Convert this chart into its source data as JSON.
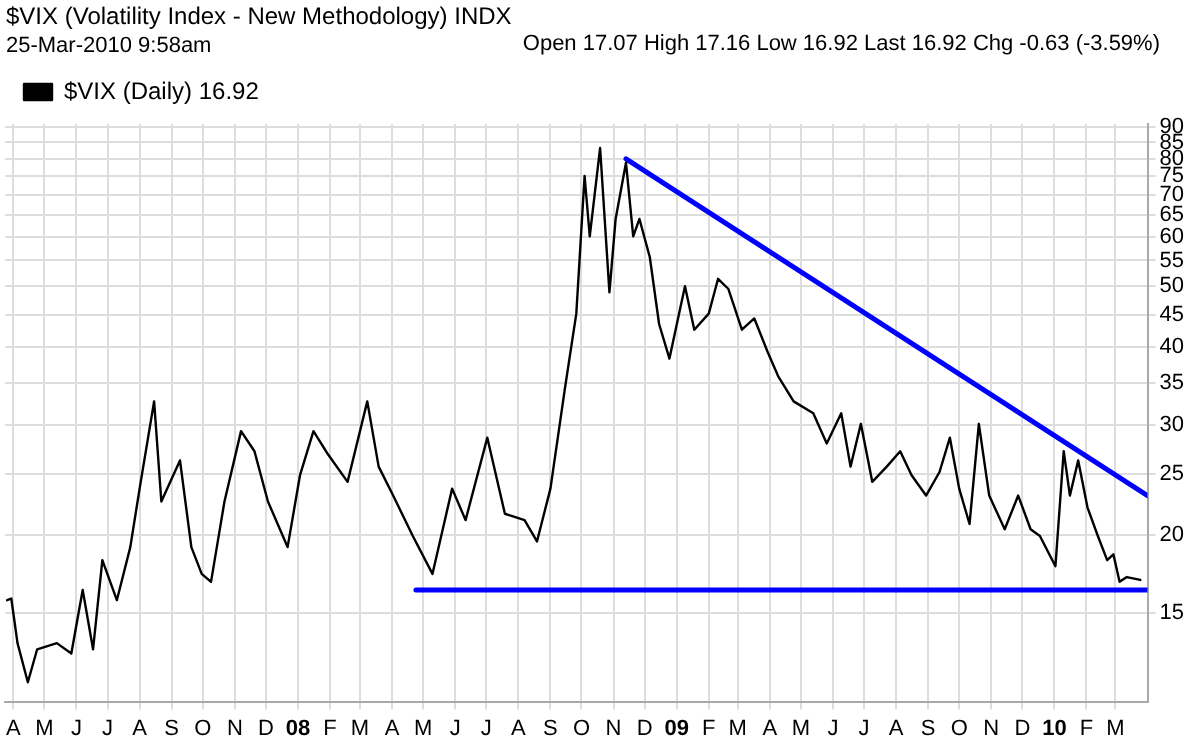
{
  "chart_data": {
    "type": "line",
    "title": "$VIX (Volatility Index - New Methodology) INDX",
    "annotations": [
      "25-Mar-2010 9:58am",
      "Open 17.07 High 17.16 Low 16.92 Last 16.92 Chg -0.63 (-3.59%)"
    ],
    "series": [
      {
        "name": "$VIX (Daily) 16.92",
        "color": "#000000",
        "x": [
          "2007-03-26",
          "2007-03-30",
          "2007-04-05",
          "2007-04-15",
          "2007-04-24",
          "2007-05-13",
          "2007-05-27",
          "2007-06-07",
          "2007-06-17",
          "2007-06-26",
          "2007-07-10",
          "2007-07-23",
          "2007-08-01",
          "2007-08-15",
          "2007-08-22",
          "2007-09-09",
          "2007-09-20",
          "2007-09-30",
          "2007-10-09",
          "2007-10-22",
          "2007-11-07",
          "2007-11-20",
          "2007-12-03",
          "2007-12-22",
          "2008-01-03",
          "2008-01-16",
          "2008-01-30",
          "2008-02-18",
          "2008-03-08",
          "2008-03-19",
          "2008-04-02",
          "2008-04-21",
          "2008-05-10",
          "2008-05-29",
          "2008-06-11",
          "2008-07-02",
          "2008-07-19",
          "2008-08-07",
          "2008-08-19",
          "2008-09-01",
          "2008-09-15",
          "2008-09-26",
          "2008-10-04",
          "2008-10-09",
          "2008-10-19",
          "2008-10-28",
          "2008-11-03",
          "2008-11-13",
          "2008-11-20",
          "2008-11-26",
          "2008-12-06",
          "2008-12-15",
          "2008-12-25",
          "2009-01-09",
          "2009-01-18",
          "2009-02-01",
          "2009-02-10",
          "2009-02-20",
          "2009-03-05",
          "2009-03-17",
          "2009-03-30",
          "2009-04-09",
          "2009-04-24",
          "2009-05-13",
          "2009-05-26",
          "2009-06-09",
          "2009-06-18",
          "2009-06-28",
          "2009-07-09",
          "2009-07-23",
          "2009-08-05",
          "2009-08-16",
          "2009-08-30",
          "2009-09-12",
          "2009-09-22",
          "2009-10-01",
          "2009-10-11",
          "2009-10-20",
          "2009-10-30",
          "2009-11-14",
          "2009-11-27",
          "2009-12-09",
          "2009-12-18",
          "2010-01-02",
          "2010-01-10",
          "2010-01-16",
          "2010-01-24",
          "2010-02-02",
          "2010-02-12",
          "2010-02-21",
          "2010-02-27",
          "2010-03-05",
          "2010-03-12",
          "2010-03-25"
        ],
        "values": [
          15.7,
          15.8,
          13.4,
          11.6,
          13.1,
          13.4,
          12.9,
          16.3,
          13.1,
          18.2,
          15.7,
          19.1,
          23.7,
          32.7,
          22.6,
          26.3,
          19.1,
          17.3,
          16.8,
          22.6,
          29.3,
          27.2,
          22.6,
          19.1,
          24.9,
          29.3,
          26.9,
          24.3,
          32.7,
          25.7,
          23.1,
          19.9,
          17.3,
          23.7,
          21.1,
          28.6,
          21.6,
          21.1,
          19.5,
          23.7,
          34.3,
          45.2,
          75.1,
          60.1,
          83.3,
          48.9,
          64.1,
          78.9,
          60.1,
          64.1,
          55.7,
          43.5,
          38.3,
          50,
          42.6,
          45.2,
          51.4,
          49.5,
          42.6,
          44.4,
          39.2,
          35.9,
          32.7,
          31.3,
          28,
          31.3,
          25.7,
          30.1,
          24.3,
          25.7,
          27.2,
          24.9,
          23.1,
          25.2,
          28.6,
          23.7,
          20.8,
          30.1,
          23.1,
          20.4,
          23.1,
          20.4,
          19.9,
          17.8,
          27.2,
          23.1,
          26.3,
          22.1,
          19.9,
          18.2,
          18.6,
          16.8,
          17.1,
          16.92
        ]
      },
      {
        "color": "#0000ff",
        "x": [
          "2008-11-13",
          "2010-04-01"
        ],
        "values": [
          80,
          23.1
        ]
      },
      {
        "color": "#0000ff",
        "x": [
          "2008-04-24",
          "2010-04-01"
        ],
        "values": [
          16.3,
          16.3
        ]
      }
    ],
    "log": true,
    "grid": true,
    "legend": "top left",
    "marker": "none",
    "line_style": "solid",
    "xlim": [
      "2007-03-24",
      "2010-04-01"
    ],
    "xticks": [
      {
        "value": "2007-04",
        "label": "A"
      },
      {
        "value": "2007-05",
        "label": "M"
      },
      {
        "value": "2007-06",
        "label": "J"
      },
      {
        "value": "2007-07",
        "label": "J"
      },
      {
        "value": "2007-08",
        "label": "A"
      },
      {
        "value": "2007-09",
        "label": "S"
      },
      {
        "value": "2007-10",
        "label": "O"
      },
      {
        "value": "2007-11",
        "label": "N"
      },
      {
        "value": "2007-12",
        "label": "D"
      },
      {
        "value": "2008-01",
        "label": "08"
      },
      {
        "value": "2008-02",
        "label": "F"
      },
      {
        "value": "2008-03",
        "label": "M"
      },
      {
        "value": "2008-04",
        "label": "A"
      },
      {
        "value": "2008-05",
        "label": "M"
      },
      {
        "value": "2008-06",
        "label": "J"
      },
      {
        "value": "2008-07",
        "label": "J"
      },
      {
        "value": "2008-08",
        "label": "A"
      },
      {
        "value": "2008-09",
        "label": "S"
      },
      {
        "value": "2008-10",
        "label": "O"
      },
      {
        "value": "2008-11",
        "label": "N"
      },
      {
        "value": "2008-12",
        "label": "D"
      },
      {
        "value": "2009-01",
        "label": "09"
      },
      {
        "value": "2009-02",
        "label": "F"
      },
      {
        "value": "2009-03",
        "label": "M"
      },
      {
        "value": "2009-04",
        "label": "A"
      },
      {
        "value": "2009-05",
        "label": "M"
      },
      {
        "value": "2009-06",
        "label": "J"
      },
      {
        "value": "2009-07",
        "label": "J"
      },
      {
        "value": "2009-08",
        "label": "A"
      },
      {
        "value": "2009-09",
        "label": "S"
      },
      {
        "value": "2009-10",
        "label": "O"
      },
      {
        "value": "2009-11",
        "label": "N"
      },
      {
        "value": "2009-12",
        "label": "D"
      },
      {
        "value": "2010-01",
        "label": "10"
      },
      {
        "value": "2010-02",
        "label": "F"
      },
      {
        "value": "2010-03",
        "label": "M"
      }
    ],
    "ylim": [
      10.8,
      91
    ],
    "yticks": [
      15,
      20,
      25,
      30,
      35,
      40,
      45,
      50,
      55,
      60,
      65,
      70,
      75,
      80,
      85,
      90
    ]
  }
}
